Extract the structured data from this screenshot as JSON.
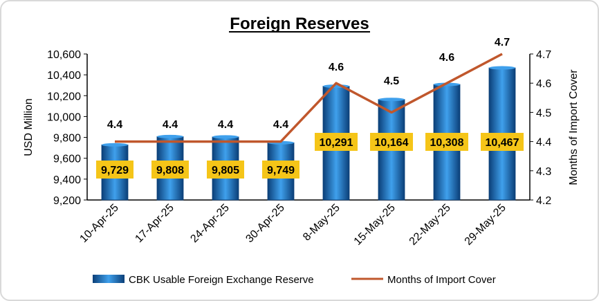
{
  "chart_data": {
    "type": "bar+line",
    "title": "Foreign Reserves",
    "categories": [
      "10-Apr-25",
      "17-Apr-25",
      "24-Apr-25",
      "30-Apr-25",
      "8-May-25",
      "15-May-25",
      "22-May-25",
      "29-May-25"
    ],
    "series": [
      {
        "name": "CBK Usable Foreign Exchange Reserve",
        "type": "bar",
        "axis": "left",
        "values": [
          9729,
          9808,
          9805,
          9749,
          10291,
          10164,
          10308,
          10467
        ],
        "labels": [
          "9,729",
          "9,808",
          "9,805",
          "9,749",
          "10,291",
          "10,164",
          "10,308",
          "10,467"
        ]
      },
      {
        "name": "Months of Import Cover",
        "type": "line",
        "axis": "right",
        "values": [
          4.4,
          4.4,
          4.4,
          4.4,
          4.6,
          4.5,
          4.6,
          4.7
        ],
        "labels": [
          "4.4",
          "4.4",
          "4.4",
          "4.4",
          "4.6",
          "4.5",
          "4.6",
          "4.7"
        ]
      }
    ],
    "ylabel_left": "USD Million",
    "ylabel_right": "Months of Import Cover",
    "ylim_left": [
      9200,
      10600
    ],
    "ylim_right": [
      4.2,
      4.7
    ],
    "yticks_left": [
      "9,200",
      "9,400",
      "9,600",
      "9,800",
      "10,000",
      "10,200",
      "10,400",
      "10,600"
    ],
    "yticks_right": [
      "4.2",
      "4.3",
      "4.4",
      "4.5",
      "4.6",
      "4.7"
    ],
    "legend_position": "bottom",
    "grid": false
  },
  "colors": {
    "bar_dark": "#0b3f78",
    "bar_mid": "#1f78c8",
    "bar_light": "#3fa0ec",
    "line": "#c0572c",
    "label_box": "#f5c518"
  }
}
